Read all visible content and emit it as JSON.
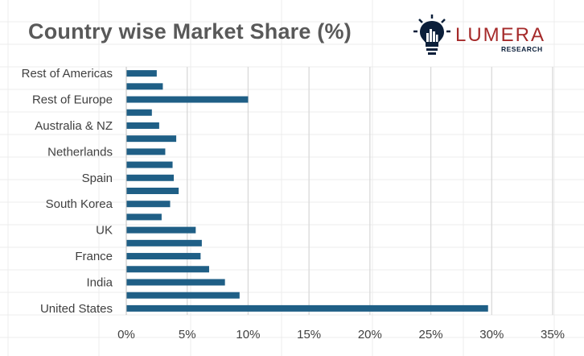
{
  "title": "Country wise Market Share (%)",
  "logo": {
    "brand": "LUMERA",
    "tagline": "RESEARCH",
    "icon": "lightbulb-city-icon",
    "brand_color": "#a52a2a",
    "icon_color": "#0b1f3a"
  },
  "colors": {
    "bar": "#1f5f86",
    "gridline": "#d9d9d9",
    "text": "#404040",
    "title": "#595959"
  },
  "chart_data": {
    "type": "bar",
    "orientation": "horizontal",
    "title": "Country wise Market Share (%)",
    "xlabel": "",
    "ylabel": "",
    "xlim": [
      0,
      35
    ],
    "xticks": [
      "0%",
      "5%",
      "10%",
      "15%",
      "20%",
      "25%",
      "30%",
      "35%"
    ],
    "grid": true,
    "legend": "none",
    "categories": [
      "Rest of Americas",
      "",
      "Rest of Europe",
      "",
      "Australia & NZ",
      "",
      "Netherlands",
      "",
      "Spain",
      "",
      "South Korea",
      "",
      "UK",
      "",
      "France",
      "",
      "India",
      "",
      "United States"
    ],
    "values": [
      2.5,
      3.0,
      10.0,
      2.1,
      2.7,
      4.1,
      3.2,
      3.8,
      3.9,
      4.3,
      3.6,
      2.9,
      5.7,
      6.2,
      6.1,
      6.8,
      8.1,
      9.3,
      29.7
    ]
  }
}
